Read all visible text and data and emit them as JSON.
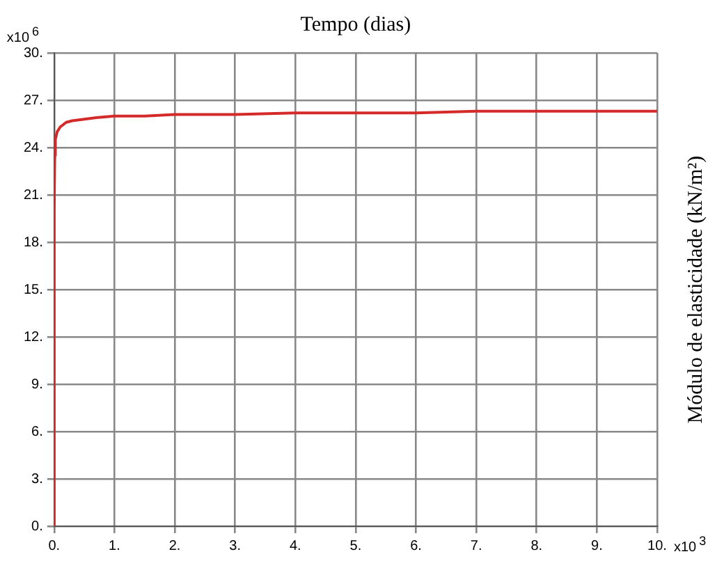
{
  "chart_data": {
    "type": "line",
    "xlabel": "Tempo (dias)",
    "ylabel": "Módulo de elasticidade (kN/m²)",
    "annotations": [
      "x10$^{6}$",
      "x10$^{3}$"
    ],
    "series": [
      {
        "color": "#d42a2a",
        "x": [
          0,
          0,
          0.01,
          0.02,
          0.05,
          0.1,
          0.2,
          0.3,
          0.5,
          0.7,
          1,
          1.5,
          2,
          3,
          4,
          5,
          6,
          7,
          8,
          9,
          10
        ],
        "values": [
          0,
          20,
          23.5,
          24.5,
          25.0,
          25.3,
          25.6,
          25.7,
          25.8,
          25.9,
          26.0,
          26.0,
          26.1,
          26.1,
          26.2,
          26.2,
          26.2,
          26.3,
          26.3,
          26.3,
          26.3
        ]
      }
    ],
    "xlim": [
      0,
      10
    ],
    "xticks": [
      {
        "value": 0,
        "label": "0."
      },
      {
        "value": 1,
        "label": "1."
      },
      {
        "value": 2,
        "label": "2."
      },
      {
        "value": 3,
        "label": "3."
      },
      {
        "value": 4,
        "label": "4."
      },
      {
        "value": 5,
        "label": "5."
      },
      {
        "value": 6,
        "label": "6."
      },
      {
        "value": 7,
        "label": "7."
      },
      {
        "value": 8,
        "label": "8."
      },
      {
        "value": 9,
        "label": "9."
      },
      {
        "value": 10,
        "label": "10."
      }
    ],
    "ylim": [
      0,
      30
    ],
    "yticks": [
      {
        "value": 0,
        "label": "0."
      },
      {
        "value": 3,
        "label": "3."
      },
      {
        "value": 6,
        "label": "6."
      },
      {
        "value": 9,
        "label": "9."
      },
      {
        "value": 12,
        "label": "12."
      },
      {
        "value": 15,
        "label": "15."
      },
      {
        "value": 18,
        "label": "18."
      },
      {
        "value": 21,
        "label": "21."
      },
      {
        "value": 24,
        "label": "24."
      },
      {
        "value": 27,
        "label": "27."
      },
      {
        "value": 30,
        "label": "30."
      }
    ],
    "grid": true,
    "legend": false,
    "marker": "none",
    "line_style": "solid"
  }
}
